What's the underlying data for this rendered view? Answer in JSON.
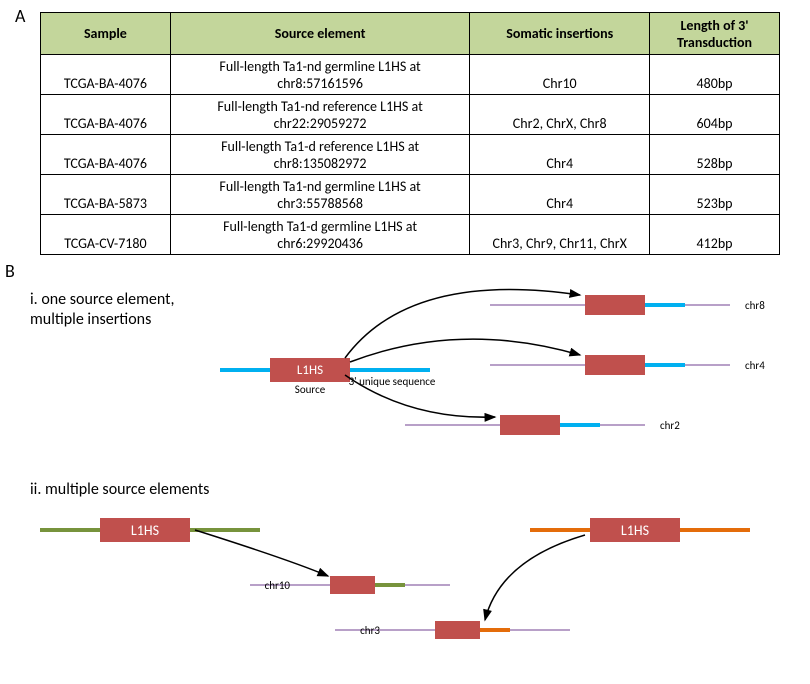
{
  "panelA": "A",
  "panelB": "B",
  "table": {
    "headers": [
      "Sample",
      "Source element",
      "Somatic insertions",
      "Length of 3' Transduction"
    ],
    "rows": [
      [
        "TCGA-BA-4076",
        "Full-length Ta1-nd germline L1HS at chr8:57161596",
        "Chr10",
        "480bp"
      ],
      [
        "TCGA-BA-4076",
        "Full-length Ta1-nd reference L1HS at chr22:29059272",
        "Chr2, ChrX, Chr8",
        "604bp"
      ],
      [
        "TCGA-BA-4076",
        "Full-length Ta1-d reference L1HS at chr8:135082972",
        "Chr4",
        "528bp"
      ],
      [
        "TCGA-BA-5873",
        "Full-length Ta1-nd germline L1HS at chr3:55788568",
        "Chr4",
        "523bp"
      ],
      [
        "TCGA-CV-7180",
        "Full-length Ta1-d germline L1HS at chr6:29920436",
        "Chr3, Chr9, Chr11, ChrX",
        "412bp"
      ]
    ]
  },
  "diagramI": {
    "title_line1": "i. one source element,",
    "title_line2": "multiple insertions",
    "l1hs_label": "L1HS",
    "source_label": "Source",
    "unique_label": "3' unique sequence",
    "chr_labels": [
      "chr8",
      "chr4",
      "chr2"
    ]
  },
  "diagramII": {
    "title": "ii. multiple source elements",
    "l1hs_label": "L1HS",
    "chr_labels": [
      "chr10",
      "chr3"
    ]
  },
  "colors": {
    "header_bg": "#c3d69b",
    "l1hs_box": "#c0504d",
    "blue_line": "#00b0f0",
    "purple_line": "#7030a0",
    "green_line": "#77933c",
    "orange_line": "#e46c0a",
    "text_white": "#ffffff"
  }
}
